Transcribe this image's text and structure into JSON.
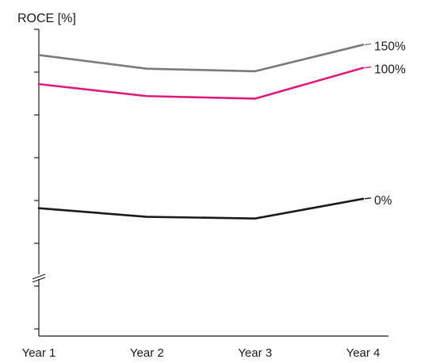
{
  "chart_data": {
    "type": "line",
    "title": "",
    "ylabel": "ROCE [%]",
    "xlabel": "",
    "categories": [
      "Year 1",
      "Year 2",
      "Year 3",
      "Year 4"
    ],
    "y_axis_break": true,
    "y_tick_labels_shown": false,
    "grid": false,
    "legend": "end-of-line labels",
    "series": [
      {
        "name": "150%",
        "color": "#7a7a7a",
        "values": [
          0.85,
          0.77,
          0.755,
          0.91
        ]
      },
      {
        "name": "100%",
        "color": "#e0197d",
        "values": [
          0.68,
          0.61,
          0.595,
          0.775
        ]
      },
      {
        "name": "0%",
        "color": "#1a1a1a",
        "values": [
          -0.045,
          -0.095,
          -0.105,
          0.01
        ]
      }
    ],
    "ylim": [
      -0.9,
      1.05
    ],
    "y_ticks": [
      1.0,
      0.75,
      0.5,
      0.25,
      0.0,
      -0.25,
      -0.5,
      -0.75
    ]
  }
}
